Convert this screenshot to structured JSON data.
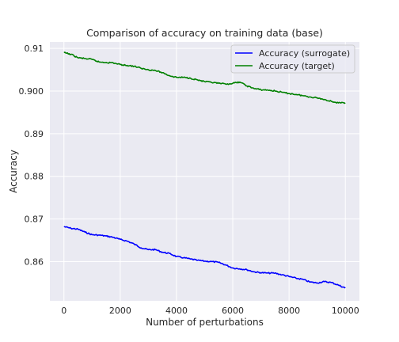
{
  "chart_data": {
    "type": "line",
    "title": "Comparison of accuracy on training data (base)",
    "xlabel": "Number of perturbations",
    "ylabel": "Accuracy",
    "xlim": [
      -500,
      10500
    ],
    "ylim": [
      0.8508,
      0.9115
    ],
    "xticks": [
      0,
      2000,
      4000,
      6000,
      8000,
      10000
    ],
    "yticks": [
      0.86,
      0.87,
      0.88,
      0.89,
      0.9,
      0.91
    ],
    "ytick_labels": [
      "0.86",
      "0.87",
      "0.88",
      "0.89",
      "0.900",
      "0.91"
    ],
    "grid": true,
    "legend_position": "top-right",
    "series": [
      {
        "name": "Accuracy (surrogate)",
        "color": "#0000ff",
        "x": [
          0,
          250,
          500,
          750,
          1000,
          1250,
          1500,
          1750,
          2000,
          2250,
          2500,
          2750,
          3000,
          3250,
          3500,
          3750,
          4000,
          4250,
          4500,
          4750,
          5000,
          5250,
          5500,
          5750,
          6000,
          6250,
          6500,
          6750,
          7000,
          7250,
          7500,
          7750,
          8000,
          8250,
          8500,
          8750,
          9000,
          9250,
          9500,
          9750,
          10000
        ],
        "y": [
          0.8682,
          0.8678,
          0.8676,
          0.8669,
          0.8663,
          0.8662,
          0.866,
          0.8657,
          0.8652,
          0.8648,
          0.8641,
          0.8632,
          0.8628,
          0.8628,
          0.8622,
          0.8619,
          0.8612,
          0.8609,
          0.8606,
          0.8603,
          0.8601,
          0.86,
          0.8598,
          0.8592,
          0.8585,
          0.8583,
          0.8581,
          0.8576,
          0.8574,
          0.8573,
          0.8573,
          0.8569,
          0.8565,
          0.8561,
          0.8558,
          0.8552,
          0.855,
          0.8553,
          0.8551,
          0.8545,
          0.8538
        ]
      },
      {
        "name": "Accuracy (target)",
        "color": "#008000",
        "x": [
          0,
          250,
          500,
          750,
          1000,
          1250,
          1500,
          1750,
          2000,
          2250,
          2500,
          2750,
          3000,
          3250,
          3500,
          3750,
          4000,
          4250,
          4500,
          4750,
          5000,
          5250,
          5500,
          5750,
          6000,
          6250,
          6500,
          6750,
          7000,
          7250,
          7500,
          7750,
          8000,
          8250,
          8500,
          8750,
          9000,
          9250,
          9500,
          9750,
          10000
        ],
        "y": [
          0.909,
          0.9086,
          0.9078,
          0.9076,
          0.9074,
          0.9068,
          0.9067,
          0.9066,
          0.9062,
          0.906,
          0.9058,
          0.9053,
          0.905,
          0.9048,
          0.9043,
          0.9036,
          0.9032,
          0.9032,
          0.903,
          0.9026,
          0.9022,
          0.902,
          0.9018,
          0.9016,
          0.9018,
          0.9021,
          0.9012,
          0.9006,
          0.9003,
          0.9002,
          0.9,
          0.8997,
          0.8994,
          0.8992,
          0.8989,
          0.8986,
          0.8984,
          0.898,
          0.8976,
          0.8972,
          0.8972
        ]
      }
    ]
  }
}
